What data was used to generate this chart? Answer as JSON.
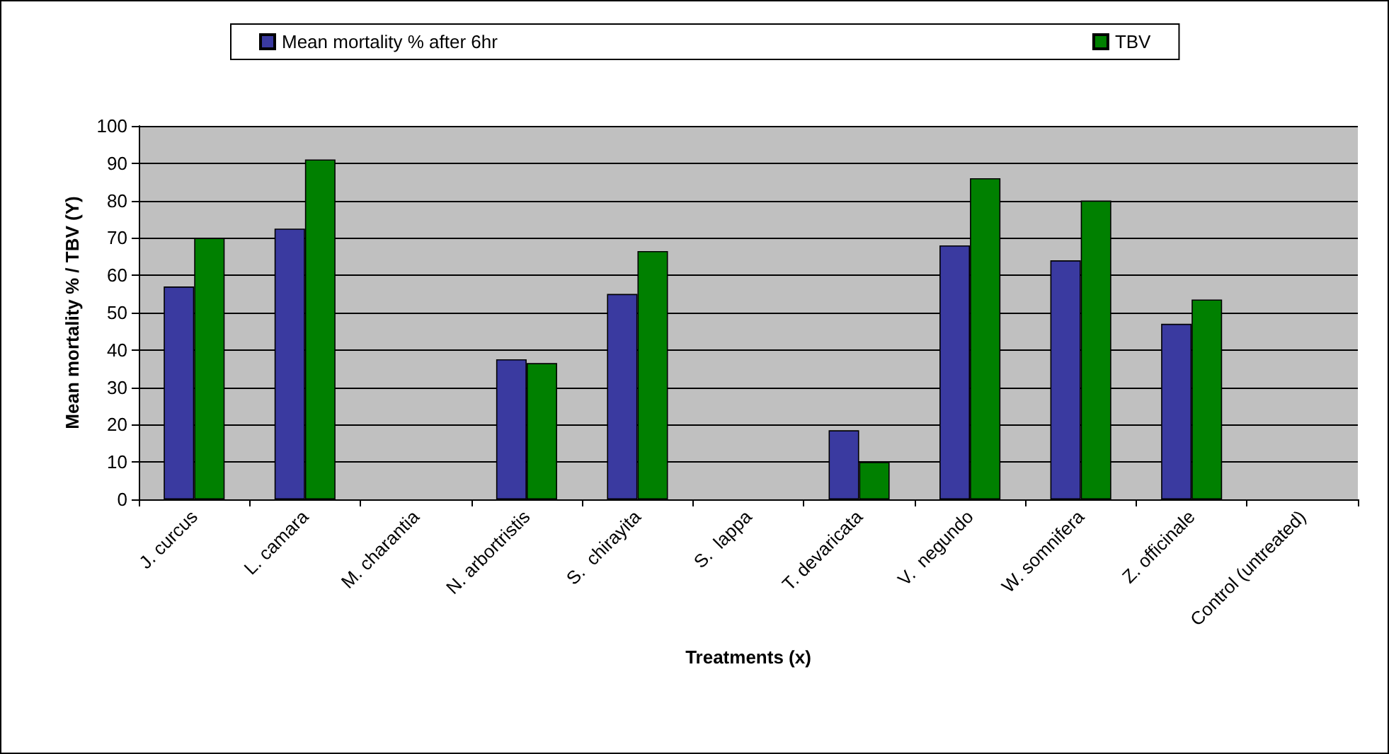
{
  "chart_data": {
    "type": "bar",
    "xlabel": "Treatments (x)",
    "ylabel": "Mean mortality % / TBV (Y)",
    "categories": [
      "J. curcus",
      "L. camara",
      "M. charantia",
      "N. arbortristis",
      "S.  chirayita",
      "S.  lappa",
      "T. devaricata",
      "V.  negundo",
      "W. somnifera",
      "Z. officinale",
      "Control (untreated)"
    ],
    "series": [
      {
        "name": "Mean mortality % after 6hr",
        "color": "#3a3aa0",
        "values": [
          57,
          72.5,
          null,
          37.5,
          55,
          null,
          18.5,
          68,
          64,
          47,
          null
        ]
      },
      {
        "name": "TBV",
        "color": "#008000",
        "values": [
          70,
          91,
          null,
          36.5,
          66.5,
          null,
          10,
          86,
          80,
          53.5,
          null
        ]
      }
    ],
    "ylim": [
      0,
      100
    ],
    "yticks": [
      0,
      10,
      20,
      30,
      40,
      50,
      60,
      70,
      80,
      90,
      100
    ],
    "grid": "y",
    "legend": "top"
  }
}
